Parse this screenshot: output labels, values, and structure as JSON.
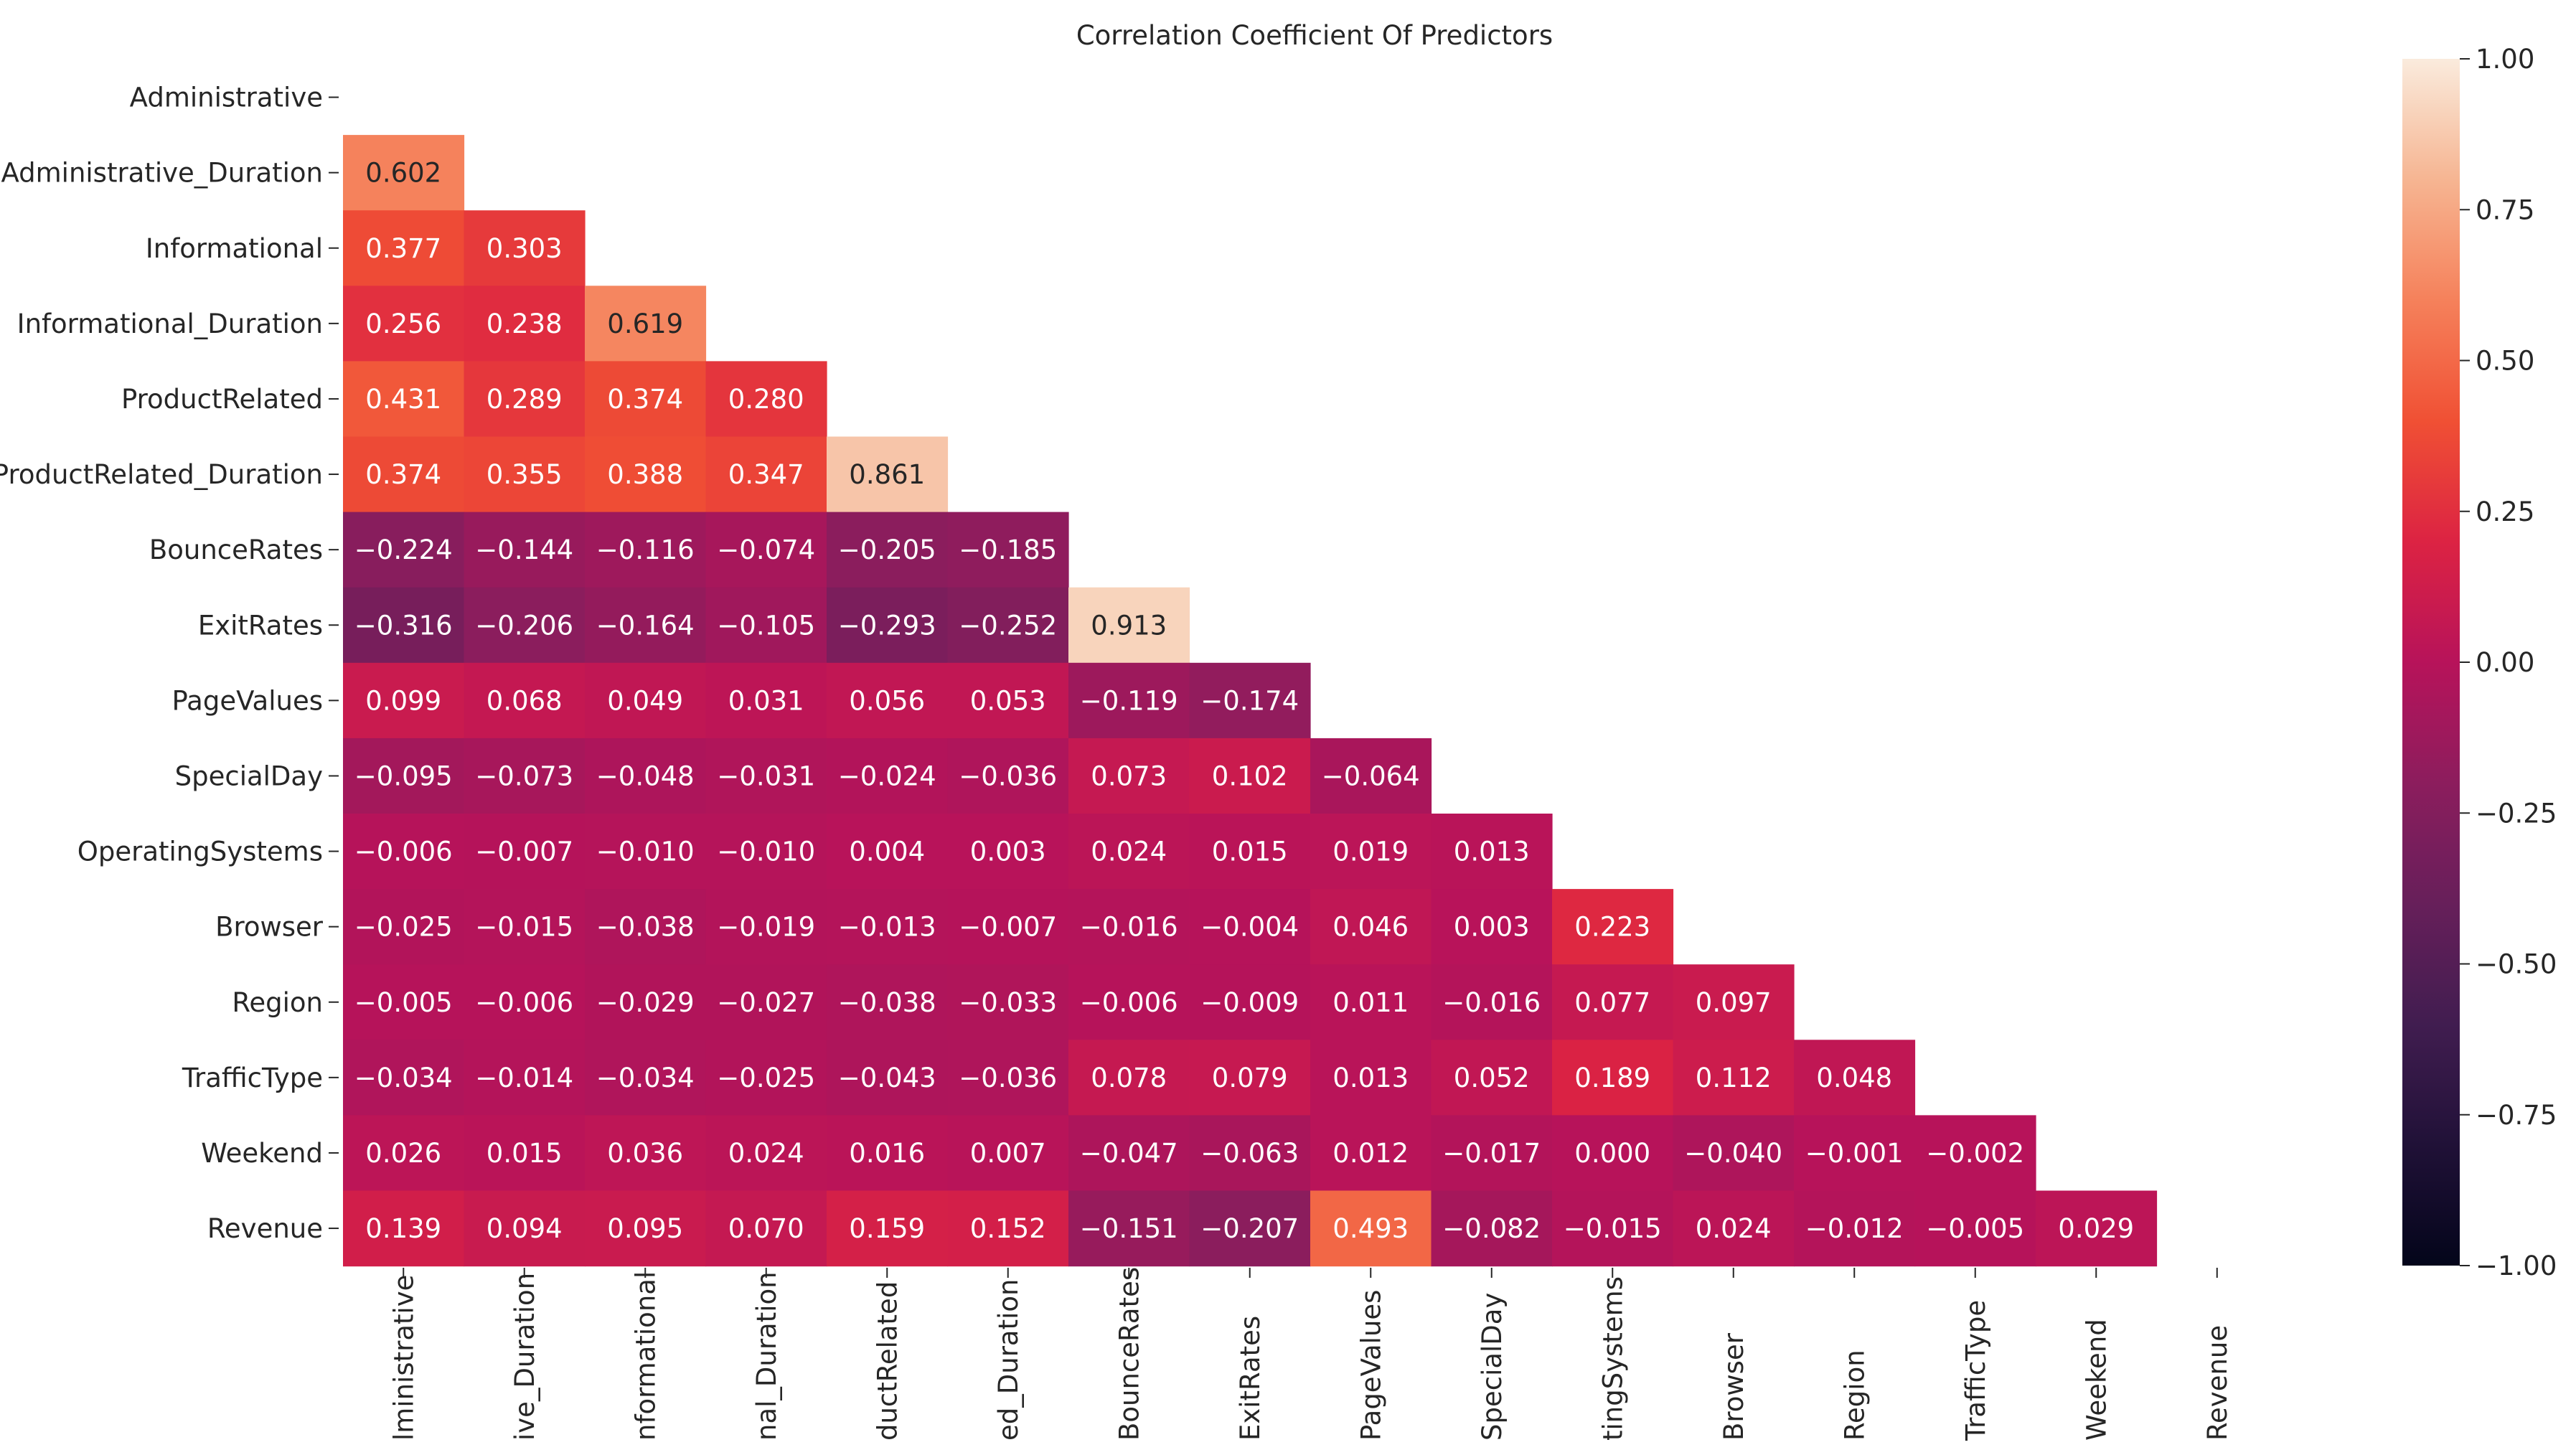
{
  "chart_data": {
    "type": "heatmap",
    "title": "Correlation Coefficient Of Predictors",
    "row_labels": [
      "Administrative",
      "Administrative_Duration",
      "Informational",
      "Informational_Duration",
      "ProductRelated",
      "ProductRelated_Duration",
      "BounceRates",
      "ExitRates",
      "PageValues",
      "SpecialDay",
      "OperatingSystems",
      "Browser",
      "Region",
      "TrafficType",
      "Weekend",
      "Revenue"
    ],
    "column_labels": [
      "Administrative",
      "Administrative_Duration",
      "Informational",
      "Informational_Duration",
      "ProductRelated",
      "ProductRelated_Duration",
      "BounceRates",
      "ExitRates",
      "PageValues",
      "SpecialDay",
      "OperatingSystems",
      "Browser",
      "Region",
      "TrafficType",
      "Weekend",
      "Revenue"
    ],
    "column_labels_visible": [
      "lministrative",
      "ive_Duration",
      "nformational",
      "nal_Duration",
      "ductRelated",
      "ed_Duration",
      "BounceRates",
      "ExitRates",
      "PageValues",
      "SpecialDay",
      "tingSystems",
      "Browser",
      "Region",
      "TrafficType",
      "Weekend",
      "Revenue"
    ],
    "values": [
      [],
      [
        0.602
      ],
      [
        0.377,
        0.303
      ],
      [
        0.256,
        0.238,
        0.619
      ],
      [
        0.431,
        0.289,
        0.374,
        0.28
      ],
      [
        0.374,
        0.355,
        0.388,
        0.347,
        0.861
      ],
      [
        -0.224,
        -0.144,
        -0.116,
        -0.074,
        -0.205,
        -0.185
      ],
      [
        -0.316,
        -0.206,
        -0.164,
        -0.105,
        -0.293,
        -0.252,
        0.913
      ],
      [
        0.099,
        0.068,
        0.049,
        0.031,
        0.056,
        0.053,
        -0.119,
        -0.174
      ],
      [
        -0.095,
        -0.073,
        -0.048,
        -0.031,
        -0.024,
        -0.036,
        0.073,
        0.102,
        -0.064
      ],
      [
        -0.006,
        -0.007,
        -0.01,
        -0.01,
        0.004,
        0.003,
        0.024,
        0.015,
        0.019,
        0.013
      ],
      [
        -0.025,
        -0.015,
        -0.038,
        -0.019,
        -0.013,
        -0.007,
        -0.016,
        -0.004,
        0.046,
        0.003,
        0.223
      ],
      [
        -0.005,
        -0.006,
        -0.029,
        -0.027,
        -0.038,
        -0.033,
        -0.006,
        -0.009,
        0.011,
        -0.016,
        0.077,
        0.097
      ],
      [
        -0.034,
        -0.014,
        -0.034,
        -0.025,
        -0.043,
        -0.036,
        0.078,
        0.079,
        0.013,
        0.052,
        0.189,
        0.112,
        0.048
      ],
      [
        0.026,
        0.015,
        0.036,
        0.024,
        0.016,
        0.007,
        -0.047,
        -0.063,
        0.012,
        -0.017,
        0.0,
        -0.04,
        -0.001,
        -0.002
      ],
      [
        0.139,
        0.094,
        0.095,
        0.07,
        0.159,
        0.152,
        -0.151,
        -0.207,
        0.493,
        -0.082,
        -0.015,
        0.024,
        -0.012,
        -0.005,
        0.029
      ]
    ],
    "color_range": [
      -1,
      1
    ],
    "colorbar_ticks": [
      "1.00",
      "0.75",
      "0.50",
      "0.25",
      "0.00",
      "−0.25",
      "−0.50",
      "−0.75",
      "−1.00"
    ],
    "colormap": "rocket",
    "mask": "upper triangle including diagonal",
    "legend_position": "right"
  }
}
